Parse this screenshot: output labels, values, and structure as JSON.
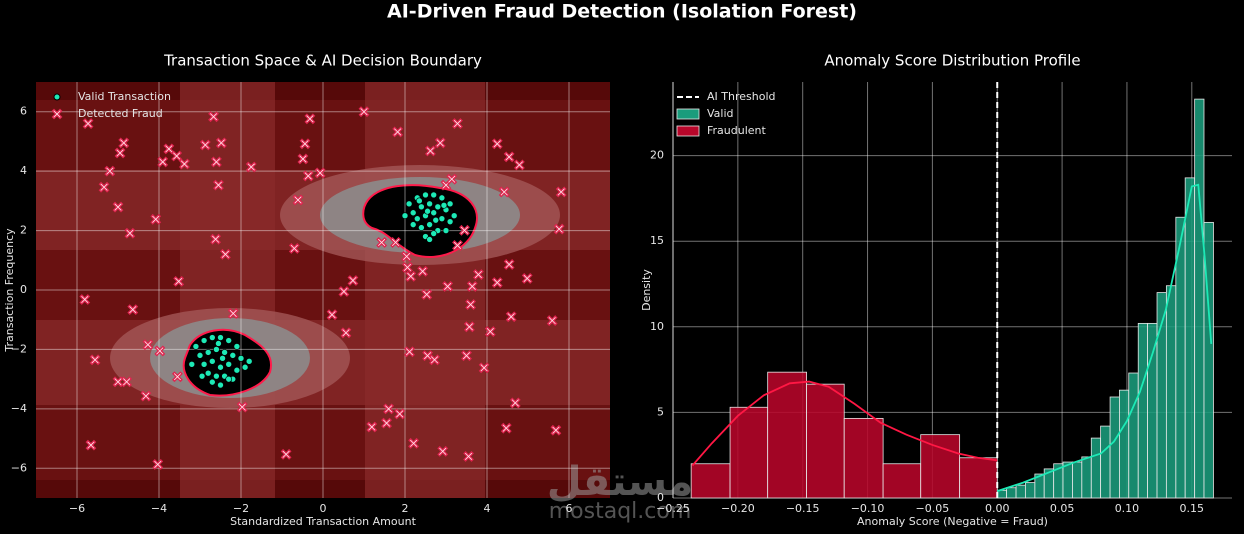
{
  "title": "AI-Driven Fraud Detection (Isolation Forest)",
  "watermark": {
    "arabic": "مستقل",
    "latin": "mostaql.com"
  },
  "chart_data": [
    {
      "type": "scatter",
      "title": "Transaction Space & AI Decision Boundary",
      "xlabel": "Standardized Transaction Amount",
      "ylabel": "Transaction Frequency",
      "xlim": [
        -7,
        7
      ],
      "ylim": [
        -7,
        7
      ],
      "xticks": [
        {
          "value": -6,
          "label": "−6"
        },
        {
          "value": -4,
          "label": "−4"
        },
        {
          "value": -2,
          "label": "−2"
        },
        0,
        2,
        4,
        6
      ],
      "yticks": [
        {
          "value": -6,
          "label": "−6"
        },
        {
          "value": -4,
          "label": "−4"
        },
        {
          "value": -2,
          "label": "−2"
        },
        0,
        2,
        4,
        6
      ],
      "grid": true,
      "legend": "upper left",
      "series": [
        {
          "name": "Valid Transaction",
          "color": "#1de9b6",
          "marker": "circle",
          "x": [
            2.1,
            2.3,
            2.5,
            2.7,
            2.9,
            3.1,
            2.2,
            2.4,
            2.6,
            2.8,
            3.0,
            3.2,
            2.0,
            2.3,
            2.5,
            2.7,
            2.9,
            3.1,
            2.4,
            2.6,
            2.8,
            2.2,
            2.5,
            2.7,
            3.0,
            2.35,
            2.55,
            2.75,
            2.95,
            2.6,
            -3.1,
            -2.9,
            -2.7,
            -2.5,
            -2.3,
            -2.1,
            -3.0,
            -2.8,
            -2.6,
            -2.4,
            -2.2,
            -2.0,
            -1.8,
            -3.2,
            -2.9,
            -2.7,
            -2.5,
            -2.3,
            -2.1,
            -2.8,
            -2.6,
            -2.4,
            -2.2,
            -2.7,
            -2.5,
            -2.3,
            -1.9,
            -2.95,
            -2.45,
            -2.55
          ],
          "values": [
            2.9,
            3.1,
            3.2,
            3.2,
            3.1,
            2.9,
            2.6,
            2.8,
            2.9,
            2.8,
            2.7,
            2.5,
            2.5,
            2.4,
            2.5,
            2.6,
            2.4,
            2.3,
            2.1,
            2.2,
            2.0,
            2.2,
            1.8,
            1.9,
            2.0,
            3.0,
            2.65,
            2.35,
            2.85,
            1.7,
            -1.9,
            -1.7,
            -1.6,
            -1.6,
            -1.7,
            -1.9,
            -2.2,
            -2.1,
            -2.0,
            -2.1,
            -2.2,
            -2.3,
            -2.4,
            -2.5,
            -2.5,
            -2.4,
            -2.6,
            -2.5,
            -2.7,
            -2.8,
            -2.9,
            -2.9,
            -3.0,
            -3.1,
            -3.2,
            -3.0,
            -2.6,
            -2.9,
            -2.3,
            -1.8
          ]
        },
        {
          "name": "Detected Fraud",
          "color": "#e0234e",
          "marker": "x",
          "x": [
            -5.73,
            -2.67,
            1.0,
            -0.32,
            3.28,
            1.82,
            -4.86,
            -4.95,
            -3.76,
            -3.57,
            -3.38,
            -3.91,
            -2.87,
            -2.48,
            -2.6,
            -0.44,
            -0.49,
            -1.75,
            -5.2,
            -5.34,
            -2.55,
            -5.0,
            -4.08,
            -4.71,
            -0.61,
            -0.36,
            -0.07,
            2.62,
            2.86,
            4.25,
            4.54,
            4.79,
            4.42,
            5.81,
            5.76,
            -2.62,
            -2.38,
            -0.7,
            -5.81,
            -4.64,
            -3.52,
            -2.19,
            0.51,
            0.73,
            0.22,
            0.56,
            -5.56,
            -4.27,
            -3.98,
            -5.0,
            -4.79,
            -4.32,
            -3.55,
            -1.97,
            -5.66,
            -4.03,
            -0.9,
            1.19,
            1.6,
            1.87,
            1.55,
            2.21,
            2.92,
            3.55,
            4.47,
            4.69,
            5.68,
            2.11,
            2.55,
            2.72,
            3.5,
            3.93,
            4.08,
            3.57,
            3.6,
            3.79,
            3.64,
            3.04,
            2.53,
            4.25,
            4.54,
            4.98,
            4.59,
            5.59,
            2.06,
            3.28,
            3.45,
            1.77,
            1.43,
            2.04,
            2.14,
            2.43,
            3.0,
            3.14
          ],
          "values": [
            5.6,
            5.83,
            6.0,
            5.76,
            5.6,
            5.32,
            4.95,
            4.61,
            4.75,
            4.51,
            4.24,
            4.31,
            4.88,
            4.95,
            4.31,
            4.92,
            4.41,
            4.14,
            4.0,
            3.46,
            3.53,
            2.79,
            2.38,
            1.91,
            3.03,
            3.84,
            3.94,
            4.68,
            4.95,
            4.92,
            4.48,
            4.21,
            3.3,
            3.3,
            2.05,
            1.71,
            1.2,
            1.4,
            -0.32,
            -0.66,
            0.29,
            -0.79,
            -0.05,
            0.32,
            -0.83,
            -1.44,
            -2.35,
            -1.84,
            -2.05,
            -3.09,
            -3.09,
            -3.57,
            -2.92,
            -3.94,
            -5.22,
            -5.87,
            -5.53,
            -4.61,
            -4.0,
            -4.17,
            -4.48,
            -5.16,
            -5.43,
            -5.6,
            -4.65,
            -3.8,
            -4.72,
            -2.08,
            -2.21,
            -2.35,
            -2.21,
            -2.62,
            -1.4,
            -1.24,
            -0.49,
            0.52,
            0.12,
            0.12,
            -0.15,
            0.25,
            0.86,
            0.39,
            -0.9,
            -1.03,
            0.76,
            1.5,
            2.01,
            1.6,
            1.6,
            1.13,
            0.46,
            0.63,
            3.53,
            3.73
          ]
        }
      ]
    },
    {
      "type": "histogram",
      "title": "Anomaly Score Distribution Profile",
      "xlabel": "Anomaly Score (Negative = Fraud)",
      "ylabel": "Density",
      "xlim": [
        -0.25,
        0.181
      ],
      "ylim": [
        0,
        24.3
      ],
      "xticks": [
        {
          "value": -0.25,
          "label": "−0.25"
        },
        {
          "value": -0.2,
          "label": "−0.20"
        },
        {
          "value": -0.15,
          "label": "−0.15"
        },
        {
          "value": -0.1,
          "label": "−0.10"
        },
        {
          "value": -0.05,
          "label": "−0.05"
        },
        {
          "value": 0,
          "label": "0.00"
        },
        {
          "value": 0.05,
          "label": "0.05"
        },
        {
          "value": 0.1,
          "label": "0.10"
        },
        {
          "value": 0.15,
          "label": "0.15"
        }
      ],
      "yticks": [
        0,
        5,
        10,
        15,
        20
      ],
      "grid": true,
      "legend": "upper left",
      "threshold": {
        "name": "AI Threshold",
        "value": 0,
        "color": "#ffffff"
      },
      "series": [
        {
          "name": "Valid",
          "color": "#1a9c7c",
          "line_color": "#1de9b6",
          "bins": [
            0,
            0.0072,
            0.0145,
            0.0217,
            0.029,
            0.0362,
            0.0435,
            0.0507,
            0.058,
            0.0652,
            0.0725,
            0.0797,
            0.087,
            0.0942,
            0.1014,
            0.1087,
            0.1159,
            0.1232,
            0.1304,
            0.1377,
            0.1449,
            0.1522,
            0.1594,
            0.1667
          ],
          "values": [
            0.45,
            0.6,
            0.75,
            0.9,
            1.4,
            1.7,
            2.0,
            2.1,
            2.1,
            2.4,
            3.5,
            4.2,
            5.9,
            6.3,
            7.3,
            10.2,
            10.2,
            12.0,
            12.4,
            16.4,
            18.7,
            23.3,
            16.1
          ],
          "kde_x": [
            0,
            0.02,
            0.04,
            0.06,
            0.08,
            0.09,
            0.1,
            0.11,
            0.12,
            0.13,
            0.14,
            0.15,
            0.155,
            0.16,
            0.165
          ],
          "kde": [
            0.4,
            0.9,
            1.5,
            2.1,
            2.6,
            3.3,
            4.5,
            6.2,
            8.5,
            11,
            14.5,
            18.2,
            18.3,
            14,
            9
          ]
        },
        {
          "name": "Fraudulent",
          "color": "#b8062a",
          "line_color": "#ff1744",
          "bins": [
            -0.236,
            -0.206,
            -0.177,
            -0.147,
            -0.118,
            -0.088,
            -0.059,
            -0.029,
            0
          ],
          "values": [
            2.0,
            5.3,
            7.35,
            6.65,
            4.65,
            2.0,
            3.7,
            2.35
          ],
          "kde_x": [
            -0.235,
            -0.22,
            -0.2,
            -0.18,
            -0.16,
            -0.145,
            -0.13,
            -0.11,
            -0.09,
            -0.07,
            -0.05,
            -0.03,
            -0.015,
            0
          ],
          "kde": [
            1.9,
            3.2,
            4.8,
            6.0,
            6.7,
            6.8,
            6.5,
            5.5,
            4.4,
            3.7,
            3.1,
            2.6,
            2.35,
            2.2
          ]
        }
      ]
    }
  ]
}
